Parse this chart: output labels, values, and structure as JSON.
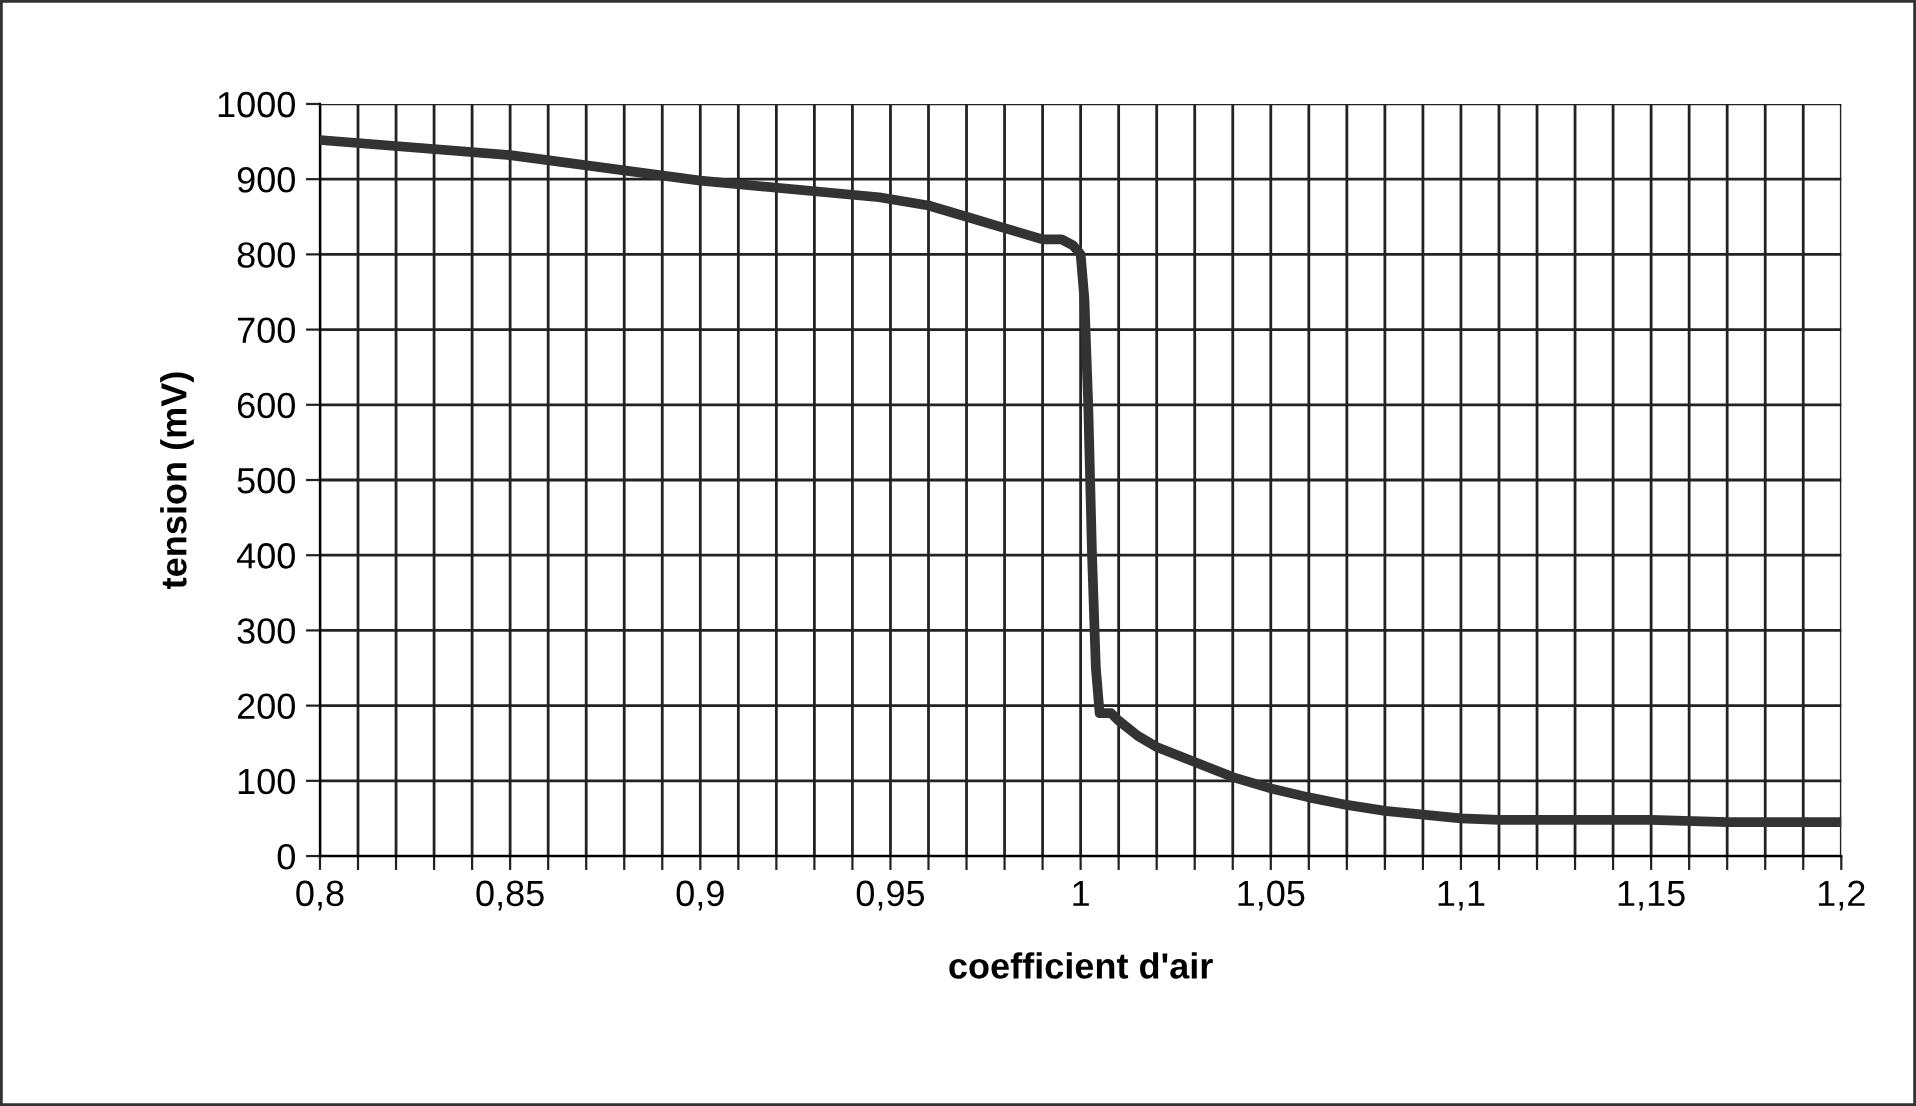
{
  "chart_data": {
    "type": "line",
    "xlabel": "coefficient d'air",
    "ylabel": "tension (mV)",
    "x": [
      0.8,
      0.85,
      0.9,
      0.947,
      0.96,
      0.97,
      0.98,
      0.99,
      0.995,
      0.998,
      1.0,
      1.001,
      1.002,
      1.003,
      1.004,
      1.005,
      1.008,
      1.01,
      1.015,
      1.02,
      1.03,
      1.04,
      1.05,
      1.06,
      1.07,
      1.08,
      1.09,
      1.1,
      1.11,
      1.15,
      1.17,
      1.2
    ],
    "series": [
      {
        "color": "#333333",
        "values": [
          952,
          932,
          898,
          876,
          865,
          850,
          835,
          820,
          820,
          812,
          800,
          740,
          600,
          400,
          250,
          190,
          190,
          180,
          160,
          145,
          125,
          105,
          90,
          78,
          68,
          60,
          55,
          50,
          48,
          48,
          45,
          45
        ]
      }
    ],
    "xlim": [
      0.8,
      1.2
    ],
    "xticks": [
      {
        "value": 0.8,
        "label": "0,8"
      },
      {
        "value": 0.81,
        "label": null
      },
      {
        "value": 0.82,
        "label": null
      },
      {
        "value": 0.83,
        "label": null
      },
      {
        "value": 0.84,
        "label": null
      },
      {
        "value": 0.85,
        "label": "0,85"
      },
      {
        "value": 0.86,
        "label": null
      },
      {
        "value": 0.87,
        "label": null
      },
      {
        "value": 0.88,
        "label": null
      },
      {
        "value": 0.89,
        "label": null
      },
      {
        "value": 0.9,
        "label": "0,9"
      },
      {
        "value": 0.91,
        "label": null
      },
      {
        "value": 0.92,
        "label": null
      },
      {
        "value": 0.93,
        "label": null
      },
      {
        "value": 0.94,
        "label": null
      },
      {
        "value": 0.95,
        "label": "0,95"
      },
      {
        "value": 0.96,
        "label": null
      },
      {
        "value": 0.97,
        "label": null
      },
      {
        "value": 0.98,
        "label": null
      },
      {
        "value": 0.99,
        "label": null
      },
      {
        "value": 1,
        "label": "1"
      },
      {
        "value": 1.01,
        "label": null
      },
      {
        "value": 1.02,
        "label": null
      },
      {
        "value": 1.03,
        "label": null
      },
      {
        "value": 1.04,
        "label": null
      },
      {
        "value": 1.05,
        "label": "1,05"
      },
      {
        "value": 1.06,
        "label": null
      },
      {
        "value": 1.07,
        "label": null
      },
      {
        "value": 1.08,
        "label": null
      },
      {
        "value": 1.09,
        "label": null
      },
      {
        "value": 1.1,
        "label": "1,1"
      },
      {
        "value": 1.11,
        "label": null
      },
      {
        "value": 1.12,
        "label": null
      },
      {
        "value": 1.13,
        "label": null
      },
      {
        "value": 1.14,
        "label": null
      },
      {
        "value": 1.15,
        "label": "1,15"
      },
      {
        "value": 1.16,
        "label": null
      },
      {
        "value": 1.17,
        "label": null
      },
      {
        "value": 1.18,
        "label": null
      },
      {
        "value": 1.19,
        "label": null
      },
      {
        "value": 1.2,
        "label": "1,2"
      }
    ],
    "ylim": [
      0,
      1000
    ],
    "yticks": [
      0,
      100,
      200,
      300,
      400,
      500,
      600,
      700,
      800,
      900,
      1000
    ],
    "grid": true,
    "marker": "none",
    "line_style": "solid"
  }
}
